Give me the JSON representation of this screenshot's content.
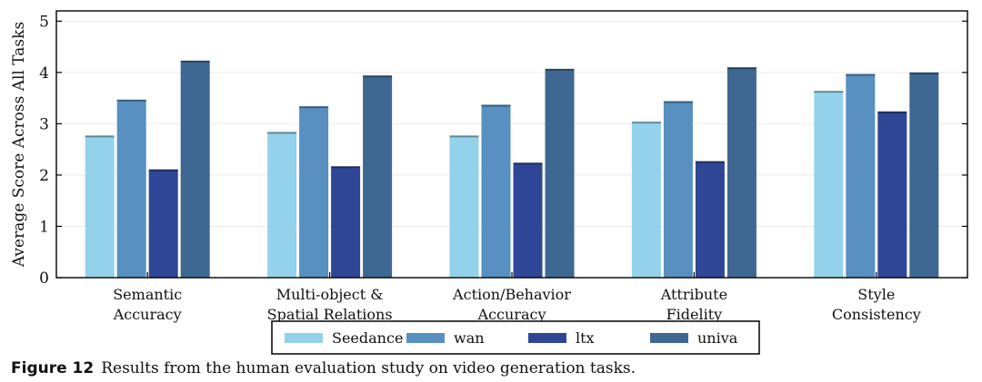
{
  "chart_data": {
    "type": "bar",
    "title": "",
    "xlabel": "",
    "ylabel": "Average Score Across All Tasks",
    "ylim": [
      0,
      5.2
    ],
    "yticks": [
      0,
      1,
      2,
      3,
      4,
      5
    ],
    "grid": true,
    "legend_position": "bottom",
    "categories": [
      [
        "Semantic",
        "Accuracy"
      ],
      [
        "Multi-object &",
        "Spatial Relations"
      ],
      [
        "Action/Behavior",
        "Accuracy"
      ],
      [
        "Attribute",
        "Fidelity"
      ],
      [
        "Style",
        "Consistency"
      ]
    ],
    "series": [
      {
        "name": "Seedance",
        "color": "#94d2ec",
        "values": [
          2.77,
          2.84,
          2.77,
          3.04,
          3.64
        ]
      },
      {
        "name": "wan",
        "color": "#5790c1",
        "values": [
          3.47,
          3.34,
          3.37,
          3.44,
          3.97
        ]
      },
      {
        "name": "ltx",
        "color": "#2f4696",
        "values": [
          2.11,
          2.17,
          2.24,
          2.27,
          3.24
        ]
      },
      {
        "name": "univa",
        "color": "#3e6891",
        "values": [
          4.23,
          3.94,
          4.07,
          4.1,
          4.0
        ]
      }
    ]
  },
  "caption": {
    "label": "Figure 12",
    "text": "Results from the human evaluation study on video generation tasks."
  }
}
